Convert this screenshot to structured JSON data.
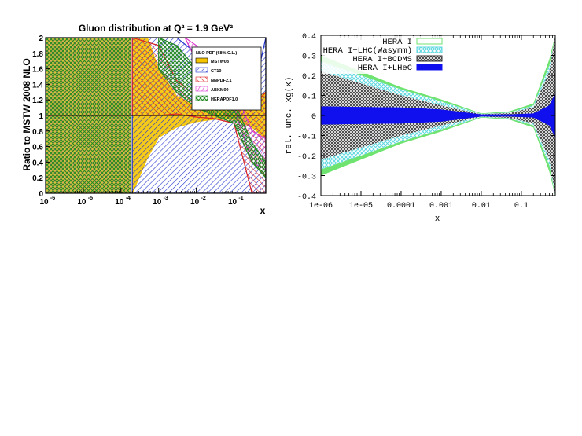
{
  "chart_data": [
    {
      "type": "area",
      "title": "Gluon distribution at Q² = 1.9 GeV²",
      "xlabel": "x",
      "ylabel": "Ratio to MSTW 2008 NLO",
      "x_scale": "log",
      "xlim": [
        1e-06,
        0.7
      ],
      "ylim": [
        0,
        2
      ],
      "x_tick_labels": [
        "10",
        "10",
        "10",
        "10",
        "10",
        "10"
      ],
      "x_tick_exponents": [
        "-6",
        "-5",
        "-4",
        "-3",
        "-2",
        "-1"
      ],
      "y_tick_labels": [
        "0",
        "0.2",
        "0.4",
        "0.6",
        "0.8",
        "1",
        "1.2",
        "1.4",
        "1.6",
        "1.8",
        "2"
      ],
      "legend_title": "NLO PDF (68% C.L.)",
      "legend_position": "top-right",
      "series": [
        {
          "name": "MSTW08",
          "color": "#f5c400",
          "x": [
            0.0002,
            0.0005,
            0.001,
            0.003,
            0.01,
            0.03,
            0.1,
            0.3,
            0.7
          ],
          "upper": [
            2.0,
            2.0,
            1.6,
            1.25,
            1.12,
            1.08,
            1.12,
            1.2,
            1.3
          ],
          "lower": [
            0.0,
            0.45,
            0.72,
            0.85,
            0.92,
            0.95,
            0.95,
            0.85,
            0.7
          ]
        },
        {
          "name": "CT10",
          "color": "#2233cc",
          "x": [
            0.0002,
            0.001,
            0.003,
            0.01,
            0.03,
            0.1,
            0.3,
            0.7
          ],
          "upper": [
            2.0,
            2.0,
            2.0,
            1.8,
            1.35,
            1.15,
            1.2,
            2.0
          ],
          "lower": [
            0.0,
            0.0,
            0.0,
            0.0,
            0.0,
            0.0,
            0.0,
            0.0
          ]
        },
        {
          "name": "NNPDF2.1",
          "color": "#dd2222",
          "x": [
            0.0002,
            0.001,
            0.003,
            0.01,
            0.03,
            0.1,
            0.3,
            0.7
          ],
          "upper": [
            2.0,
            1.9,
            1.45,
            1.25,
            1.15,
            1.22,
            1.1,
            1.3
          ],
          "lower": [
            1.0,
            1.0,
            1.02,
            0.98,
            0.96,
            0.9,
            0.0,
            0.0
          ]
        },
        {
          "name": "ABKM09",
          "color": "#dd33cc",
          "x": [
            0.005,
            0.01,
            0.03,
            0.1,
            0.3,
            0.7
          ],
          "upper": [
            2.0,
            1.9,
            1.6,
            1.35,
            0.8,
            0.7
          ],
          "lower": [
            2.0,
            1.7,
            1.4,
            1.1,
            0.4,
            0.3
          ]
        },
        {
          "name": "HERAPDF1.0",
          "color": "#228822",
          "x": [
            0.001,
            0.003,
            0.01,
            0.03,
            0.1,
            0.3,
            0.7
          ],
          "upper": [
            2.0,
            1.9,
            1.6,
            1.2,
            1.18,
            0.65,
            0.4
          ],
          "lower": [
            1.6,
            1.3,
            1.1,
            1.0,
            0.9,
            0.4,
            0.2
          ]
        }
      ]
    },
    {
      "type": "area",
      "title": "",
      "xlabel": "x",
      "ylabel": "rel. unc. xg(x)",
      "x_scale": "log",
      "xlim": [
        1e-06,
        0.7
      ],
      "ylim": [
        -0.4,
        0.4
      ],
      "x_tick_labels": [
        "1e-06",
        "1e-05",
        "0.0001",
        "0.001",
        "0.01",
        "0.1"
      ],
      "y_tick_labels": [
        "0.4",
        "0.3",
        "0.2",
        "0.1",
        "0",
        "-0.1",
        "-0.2",
        "-0.3",
        "-0.4"
      ],
      "legend_position": "top-center",
      "series": [
        {
          "name": "HERA I",
          "color": "#6fe36f",
          "x": [
            1e-06,
            1e-05,
            0.0001,
            0.001,
            0.01,
            0.05,
            0.2,
            0.5,
            0.7
          ],
          "upper": [
            0.3,
            0.22,
            0.14,
            0.08,
            0.01,
            0.02,
            0.06,
            0.28,
            0.4
          ]
        },
        {
          "name": "HERA I+LHC(Wasymm)",
          "color": "#7ee6ee",
          "x": [
            1e-06,
            1e-05,
            0.0001,
            0.001,
            0.01,
            0.05,
            0.2,
            0.5,
            0.7
          ],
          "upper": [
            0.27,
            0.2,
            0.13,
            0.07,
            0.008,
            0.015,
            0.05,
            0.25,
            0.4
          ]
        },
        {
          "name": "HERA I+BCDMS",
          "color": "#444444",
          "x": [
            1e-06,
            1e-05,
            0.0001,
            0.001,
            0.01,
            0.05,
            0.2,
            0.5,
            0.7
          ],
          "upper": [
            0.22,
            0.16,
            0.1,
            0.05,
            0.006,
            0.012,
            0.04,
            0.22,
            0.4
          ]
        },
        {
          "name": "HERA I+LHeC",
          "color": "#1010ee",
          "x": [
            1e-06,
            1e-05,
            0.0001,
            0.001,
            0.01,
            0.05,
            0.2,
            0.5,
            0.7
          ],
          "upper": [
            0.045,
            0.042,
            0.04,
            0.03,
            0.005,
            0.005,
            0.01,
            0.05,
            0.11
          ]
        }
      ]
    }
  ]
}
